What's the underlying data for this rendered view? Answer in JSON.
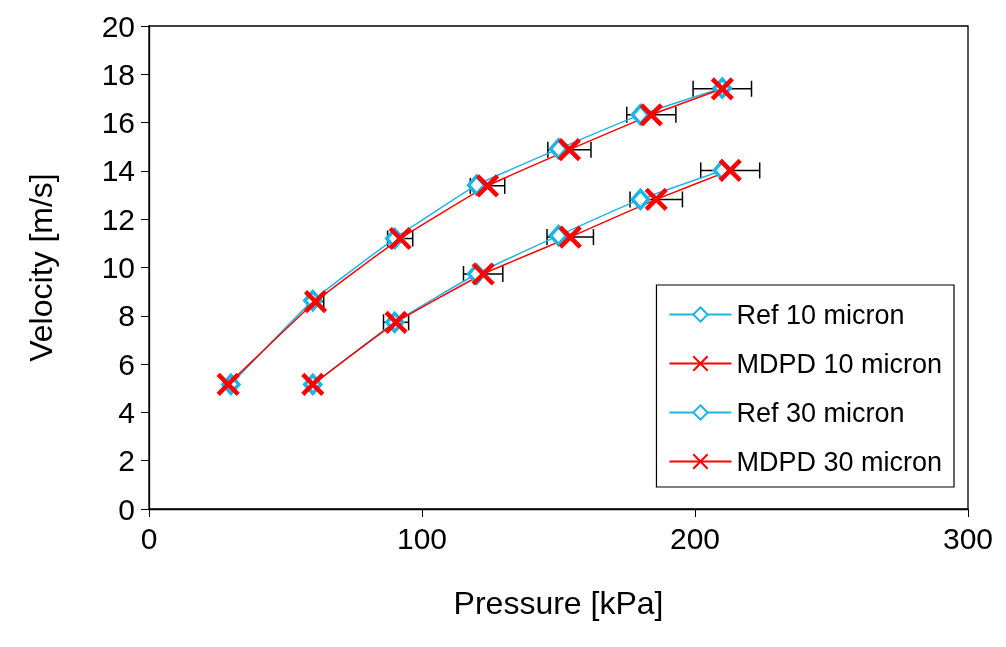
{
  "chart_data": {
    "type": "line",
    "xlabel": "Pressure [kPa]",
    "ylabel": "Velocity [m/s]",
    "xlim": [
      0,
      300
    ],
    "xticks": [
      0,
      100,
      200,
      300
    ],
    "ylim": [
      0,
      20
    ],
    "yticks": [
      0,
      2,
      4,
      6,
      8,
      10,
      12,
      14,
      16,
      18,
      20
    ],
    "grid": false,
    "legend": "bottom right",
    "series": [
      {
        "name": "Ref 10 micron",
        "color": "#1eb4e6",
        "marker": "diamond",
        "x": [
          30,
          60,
          90,
          120,
          150,
          180,
          210
        ],
        "values": [
          5.16,
          8.63,
          11.2,
          13.41,
          14.91,
          16.32,
          17.43
        ]
      },
      {
        "name": "MDPD 10 micron",
        "color": "#ff0000",
        "marker": "cross",
        "x": [
          29,
          61,
          92,
          124,
          154,
          184,
          210
        ],
        "values": [
          5.16,
          8.59,
          11.2,
          13.38,
          14.88,
          16.32,
          17.4
        ],
        "xerrors": [
          null,
          3,
          4.6,
          6.3,
          7.9,
          9,
          10.7
        ]
      },
      {
        "name": "Ref 30 micron",
        "color": "#1eb4e6",
        "marker": "diamond",
        "x": [
          60,
          90,
          120,
          150,
          180,
          210
        ],
        "values": [
          5.16,
          7.73,
          9.73,
          11.32,
          12.82,
          14.02
        ]
      },
      {
        "name": "MDPD 30 micron",
        "color": "#ff0000",
        "marker": "cross",
        "x": [
          60,
          90.5,
          122.4,
          154.3,
          185.8,
          212.9
        ],
        "values": [
          5.16,
          7.73,
          9.73,
          11.26,
          12.82,
          14.02
        ],
        "xerrors": [
          null,
          4.6,
          7.2,
          8.5,
          9.6,
          10.8
        ]
      }
    ]
  }
}
